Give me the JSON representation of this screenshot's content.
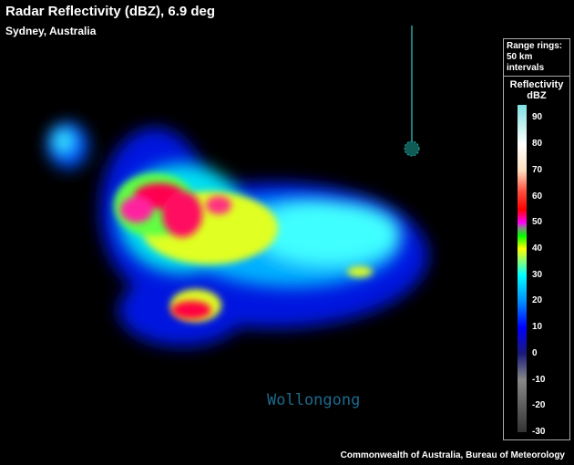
{
  "header": {
    "title": "Radar Reflectivity (dBZ), 6.9 deg",
    "location": "Sydney, Australia"
  },
  "map": {
    "place_label": "Wollongong",
    "place_color": "#1b6a8e",
    "radar_site_color": "#2fa3a0"
  },
  "legend": {
    "range_rings": "Range rings:",
    "range_interval": "50 km",
    "range_interval_unit": "intervals",
    "scale_title": "Reflectivity",
    "scale_unit": "dBZ",
    "ticks": [
      "90",
      "80",
      "70",
      "60",
      "50",
      "40",
      "30",
      "20",
      "10",
      "0",
      "-10",
      "-20",
      "-30"
    ],
    "range": [
      -30,
      95
    ],
    "colors": [
      {
        "dbz": -30,
        "color": "#333333"
      },
      {
        "dbz": -10,
        "color": "#888888"
      },
      {
        "dbz": 0,
        "color": "#1a1a7a"
      },
      {
        "dbz": 10,
        "color": "#0000ff"
      },
      {
        "dbz": 20,
        "color": "#0090ff"
      },
      {
        "dbz": 30,
        "color": "#00ffff"
      },
      {
        "dbz": 40,
        "color": "#ffff00"
      },
      {
        "dbz": 45,
        "color": "#00ff00"
      },
      {
        "dbz": 48,
        "color": "#888888"
      },
      {
        "dbz": 50,
        "color": "#ff00ff"
      },
      {
        "dbz": 55,
        "color": "#ff0000"
      },
      {
        "dbz": 62,
        "color": "#ff5040"
      },
      {
        "dbz": 70,
        "color": "#ffe0c0"
      },
      {
        "dbz": 80,
        "color": "#ffffff"
      },
      {
        "dbz": 95,
        "color": "#80e0e0"
      }
    ]
  },
  "footer": {
    "credit": "Commonwealth of Australia, Bureau of Meteorology"
  }
}
